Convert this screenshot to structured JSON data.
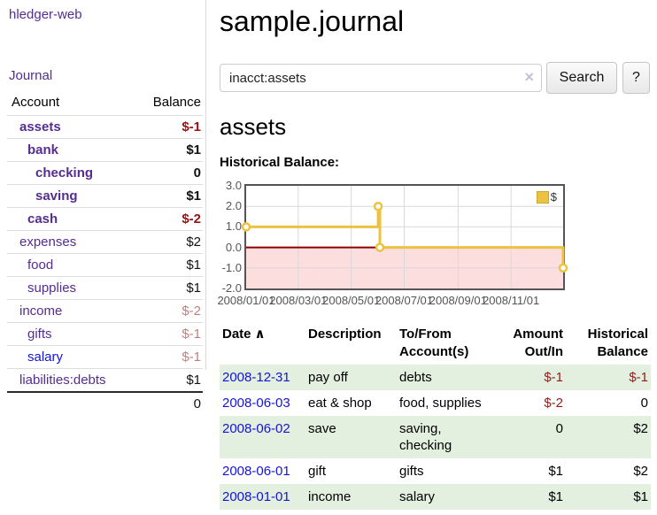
{
  "app": {
    "brand": "hledger-web",
    "nav_journal": "Journal"
  },
  "sidebar": {
    "header": {
      "account": "Account",
      "balance": "Balance"
    },
    "accounts": [
      {
        "name": "assets",
        "balance": "$-1",
        "depth": 1,
        "bold": true,
        "neg": "strong"
      },
      {
        "name": "bank",
        "balance": "$1",
        "depth": 2,
        "bold": true,
        "neg": "none"
      },
      {
        "name": "checking",
        "balance": "0",
        "depth": 3,
        "bold": true,
        "neg": "none"
      },
      {
        "name": "saving",
        "balance": "$1",
        "depth": 3,
        "bold": true,
        "neg": "none"
      },
      {
        "name": "cash",
        "balance": "$-2",
        "depth": 2,
        "bold": true,
        "neg": "strong"
      },
      {
        "name": "expenses",
        "balance": "$2",
        "depth": 1,
        "bold": false,
        "neg": "none"
      },
      {
        "name": "food",
        "balance": "$1",
        "depth": 2,
        "bold": false,
        "neg": "none"
      },
      {
        "name": "supplies",
        "balance": "$1",
        "depth": 2,
        "bold": false,
        "neg": "none"
      },
      {
        "name": "income",
        "balance": "$-2",
        "depth": 1,
        "bold": false,
        "neg": "muted"
      },
      {
        "name": "gifts",
        "balance": "$-1",
        "depth": 2,
        "bold": false,
        "neg": "muted"
      },
      {
        "name": "salary",
        "balance": "$-1",
        "depth": 2,
        "bold": false,
        "neg": "muted",
        "link": "blue"
      },
      {
        "name": "liabilities:debts",
        "balance": "$1",
        "depth": 1,
        "bold": false,
        "neg": "none"
      }
    ],
    "total": "0"
  },
  "header": {
    "title": "sample.journal"
  },
  "search": {
    "value": "inacct:assets",
    "clear_icon": "×",
    "button": "Search",
    "help_button": "?"
  },
  "account_page": {
    "heading": "assets",
    "chart_label": "Historical Balance:"
  },
  "chart_data": {
    "type": "line",
    "title": "Historical Balance of assets",
    "series": [
      {
        "name": "$",
        "step": true,
        "points": [
          [
            "2008-01-01",
            1
          ],
          [
            "2008-06-01",
            2
          ],
          [
            "2008-06-03",
            0
          ],
          [
            "2008-12-31",
            -1
          ]
        ]
      }
    ],
    "ylim": [
      -2,
      3
    ],
    "yticks": [
      "3.0",
      "2.0",
      "1.0",
      "0.0",
      "-1.0",
      "-2.0"
    ],
    "xticks": [
      "2008/01/01",
      "2008/03/01",
      "2008/05/01",
      "2008/07/01",
      "2008/09/01",
      "2008/11/01"
    ],
    "x_range": [
      "2008-01-01",
      "2008-12-31"
    ],
    "legend": [
      "$"
    ],
    "legend_position": "top-right",
    "grid": true,
    "negative_region_shaded": true,
    "colors": {
      "line": "#edc240",
      "point_fill": "#ffffff",
      "negative_fill": "#fcdede",
      "zero_line": "#8b0000",
      "grid": "#d8d8d8",
      "border": "#545454"
    }
  },
  "register": {
    "columns": [
      "Date",
      "Description",
      "To/From Account(s)",
      "Amount Out/In",
      "Historical Balance"
    ],
    "sort_icon": "∧",
    "rows": [
      {
        "date": "2008-12-31",
        "description": "pay off",
        "accounts": "debts",
        "amount": "$-1",
        "balance": "$-1",
        "amount_neg": true,
        "balance_neg": true
      },
      {
        "date": "2008-06-03",
        "description": "eat & shop",
        "accounts": "food, supplies",
        "amount": "$-2",
        "balance": "0",
        "amount_neg": true,
        "balance_neg": false
      },
      {
        "date": "2008-06-02",
        "description": "save",
        "accounts": "saving, checking",
        "amount": "0",
        "balance": "$2",
        "amount_neg": false,
        "balance_neg": false
      },
      {
        "date": "2008-06-01",
        "description": "gift",
        "accounts": "gifts",
        "amount": "$1",
        "balance": "$2",
        "amount_neg": false,
        "balance_neg": false
      },
      {
        "date": "2008-01-01",
        "description": "income",
        "accounts": "salary",
        "amount": "$1",
        "balance": "$1",
        "amount_neg": false,
        "balance_neg": false
      }
    ]
  }
}
